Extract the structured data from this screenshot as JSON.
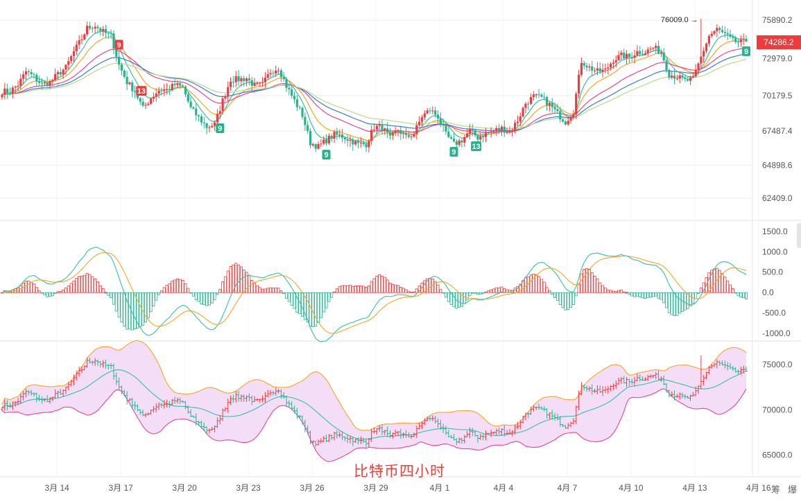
{
  "watermark": "比特币四小时",
  "current_price_label": "74286.2",
  "high_label": "76009.0",
  "corner_labels": [
    "筹",
    "爆"
  ],
  "colors": {
    "up": "#ef3b3b",
    "down": "#26b28f",
    "ma_fast": "#2fc2a8",
    "ma_mid": "#f5a623",
    "ma_slow": "#e8468f",
    "ma_blue": "#3a7bd5",
    "ma_light": "#b6dd8a",
    "boll_upper": "#f5a623",
    "boll_mid": "#2fc2a8",
    "boll_lower": "#e8468f",
    "boll_fill": "#f3ddf7"
  },
  "chart_data": {
    "type": "candlestick",
    "x_tick_labels": [
      "3月 14",
      "3月 17",
      "3月 20",
      "3月 23",
      "3月 26",
      "3月 29",
      "4月 1",
      "4月 4",
      "4月 7",
      "4月 10",
      "4月 13",
      "4月 16"
    ],
    "price_axis": {
      "ticks": [
        "75890.2",
        "72979.0",
        "70179.5",
        "67487.4",
        "64898.6",
        "62409.0"
      ],
      "range": [
        61400,
        76900
      ]
    },
    "macd_axis": {
      "ticks": [
        "1500.0",
        "1000.0",
        "500.0",
        "0.0",
        "-500.0",
        "-1000.0"
      ],
      "range": [
        -1100,
        1700
      ]
    },
    "boll_axis": {
      "ticks": [
        "75000.0",
        "70000.0",
        "65000.0"
      ],
      "range": [
        63200,
        77000
      ]
    },
    "td_markers": [
      {
        "label": "9",
        "type": "up",
        "at": "3月 16"
      },
      {
        "label": "13",
        "type": "up",
        "at": "3月 17"
      },
      {
        "label": "9",
        "type": "down",
        "at": "3月 20"
      },
      {
        "label": "9",
        "type": "down",
        "at": "3月 24"
      },
      {
        "label": "9",
        "type": "down",
        "at": "3月 27"
      },
      {
        "label": "13",
        "type": "down",
        "at": "3月 28"
      },
      {
        "label": "9",
        "type": "down",
        "at": "4月 13"
      }
    ],
    "anchors": [
      [
        3,
        70500
      ],
      [
        6,
        71000
      ],
      [
        9,
        72000
      ],
      [
        12,
        71600
      ],
      [
        15,
        71000
      ],
      [
        18,
        71200
      ],
      [
        21,
        71800
      ],
      [
        24,
        72300
      ],
      [
        27,
        73500
      ],
      [
        30,
        74500
      ],
      [
        32,
        75300
      ],
      [
        35,
        75500
      ],
      [
        38,
        75000
      ],
      [
        41,
        74700
      ],
      [
        44,
        72500
      ],
      [
        47,
        71200
      ],
      [
        50,
        70500
      ],
      [
        53,
        69200
      ],
      [
        56,
        70000
      ],
      [
        59,
        70600
      ],
      [
        62,
        70600
      ],
      [
        65,
        71000
      ],
      [
        68,
        70800
      ],
      [
        71,
        69200
      ],
      [
        74,
        68500
      ],
      [
        77,
        67800
      ],
      [
        80,
        68000
      ],
      [
        83,
        69800
      ],
      [
        86,
        71400
      ],
      [
        89,
        71400
      ],
      [
        92,
        71500
      ],
      [
        95,
        70900
      ],
      [
        98,
        71000
      ],
      [
        101,
        72000
      ],
      [
        104,
        72300
      ],
      [
        107,
        70900
      ],
      [
        110,
        69800
      ],
      [
        113,
        68700
      ],
      [
        116,
        66600
      ],
      [
        119,
        66300
      ],
      [
        122,
        66800
      ],
      [
        125,
        67200
      ],
      [
        128,
        67100
      ],
      [
        131,
        66800
      ],
      [
        134,
        66500
      ],
      [
        137,
        66500
      ],
      [
        140,
        67800
      ],
      [
        143,
        67800
      ],
      [
        146,
        66900
      ],
      [
        149,
        67600
      ],
      [
        152,
        67000
      ],
      [
        155,
        67300
      ],
      [
        158,
        68600
      ],
      [
        161,
        69100
      ],
      [
        164,
        68600
      ],
      [
        167,
        67200
      ],
      [
        170,
        66500
      ],
      [
        173,
        66800
      ],
      [
        176,
        67500
      ],
      [
        179,
        67000
      ],
      [
        182,
        67300
      ],
      [
        185,
        67500
      ],
      [
        188,
        67700
      ],
      [
        191,
        67400
      ],
      [
        194,
        68300
      ],
      [
        197,
        69600
      ],
      [
        200,
        70100
      ],
      [
        203,
        70000
      ],
      [
        206,
        69500
      ],
      [
        209,
        68800
      ],
      [
        212,
        68200
      ],
      [
        215,
        69000
      ],
      [
        218,
        72800
      ],
      [
        221,
        72300
      ],
      [
        224,
        72000
      ],
      [
        227,
        72100
      ],
      [
        230,
        72900
      ],
      [
        233,
        73200
      ],
      [
        236,
        73100
      ],
      [
        239,
        73500
      ],
      [
        242,
        73500
      ],
      [
        245,
        73800
      ],
      [
        248,
        73500
      ],
      [
        251,
        71800
      ],
      [
        254,
        71600
      ],
      [
        257,
        71300
      ],
      [
        260,
        71400
      ],
      [
        263,
        73100
      ],
      [
        266,
        74700
      ],
      [
        269,
        75200
      ],
      [
        272,
        74800
      ],
      [
        275,
        74300
      ],
      [
        278,
        74200
      ],
      [
        280,
        74286
      ]
    ],
    "candles": [],
    "series": [
      {
        "name": "MA1",
        "color_key": "ma_fast"
      },
      {
        "name": "MA2",
        "color_key": "ma_mid"
      },
      {
        "name": "MA3",
        "color_key": "ma_slow"
      },
      {
        "name": "MA4",
        "color_key": "ma_blue"
      },
      {
        "name": "MA5",
        "color_key": "ma_light"
      }
    ],
    "indicators": [
      "MACD",
      "BOLL"
    ]
  }
}
